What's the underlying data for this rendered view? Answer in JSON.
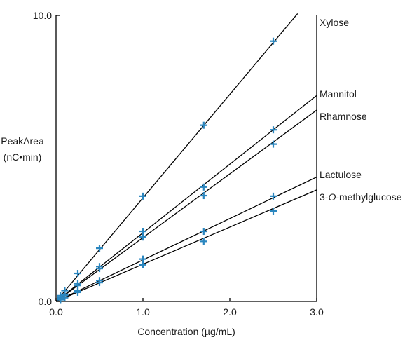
{
  "chart_data": {
    "type": "scatter",
    "xlabel": "Concentration (µg/mL)",
    "ylabel_line1": "PeakArea",
    "ylabel_line2": "(nC•min)",
    "xlim": [
      0,
      3.0
    ],
    "ylim": [
      0,
      10.0
    ],
    "x_ticks": [
      {
        "value": 0.0,
        "label": "0.0"
      },
      {
        "value": 1.0,
        "label": "1.0"
      },
      {
        "value": 2.0,
        "label": "2.0"
      },
      {
        "value": 3.0,
        "label": "3.0"
      }
    ],
    "y_ticks": [
      {
        "value": 0.0,
        "label": "0.0"
      },
      {
        "value": 10.0,
        "label": "10.0"
      }
    ],
    "grid": false,
    "marker_color": "#2a86bf",
    "series": [
      {
        "name": "Xylose",
        "label_prefix": "",
        "label_italic": "",
        "label_suffix": "",
        "slope": 3.62,
        "line_to_x": 2.78,
        "x": [
          0.05,
          0.1,
          0.25,
          0.5,
          1.0,
          1.7,
          2.5
        ],
        "y": [
          0.2,
          0.38,
          0.98,
          1.86,
          3.68,
          6.16,
          9.1
        ]
      },
      {
        "name": "Mannitol",
        "label_prefix": "",
        "label_italic": "",
        "label_suffix": "",
        "slope": 2.4,
        "line_to_x": 3.0,
        "x": [
          0.05,
          0.1,
          0.25,
          0.5,
          1.0,
          1.7,
          2.5
        ],
        "y": [
          0.12,
          0.25,
          0.62,
          1.22,
          2.45,
          4.0,
          6.0
        ]
      },
      {
        "name": "Rhamnose",
        "label_prefix": "",
        "label_italic": "",
        "label_suffix": "",
        "slope": 2.23,
        "line_to_x": 3.0,
        "x": [
          0.05,
          0.1,
          0.25,
          0.5,
          1.0,
          1.7,
          2.5
        ],
        "y": [
          0.11,
          0.22,
          0.56,
          1.15,
          2.25,
          3.7,
          5.5
        ]
      },
      {
        "name": "Lactulose",
        "label_prefix": "",
        "label_italic": "",
        "label_suffix": "",
        "slope": 1.45,
        "line_to_x": 3.0,
        "x": [
          0.05,
          0.1,
          0.25,
          0.5,
          1.0,
          1.7,
          2.5
        ],
        "y": [
          0.07,
          0.15,
          0.37,
          0.73,
          1.48,
          2.45,
          3.68
        ]
      },
      {
        "name": "3-O-methylglucose",
        "label_prefix": "3-",
        "label_italic": "O",
        "label_suffix": "-methylglucose",
        "slope": 1.3,
        "line_to_x": 3.0,
        "x": [
          0.05,
          0.1,
          0.25,
          0.5,
          1.0,
          1.7,
          2.5
        ],
        "y": [
          0.06,
          0.13,
          0.32,
          0.66,
          1.28,
          2.1,
          3.16
        ]
      }
    ]
  }
}
